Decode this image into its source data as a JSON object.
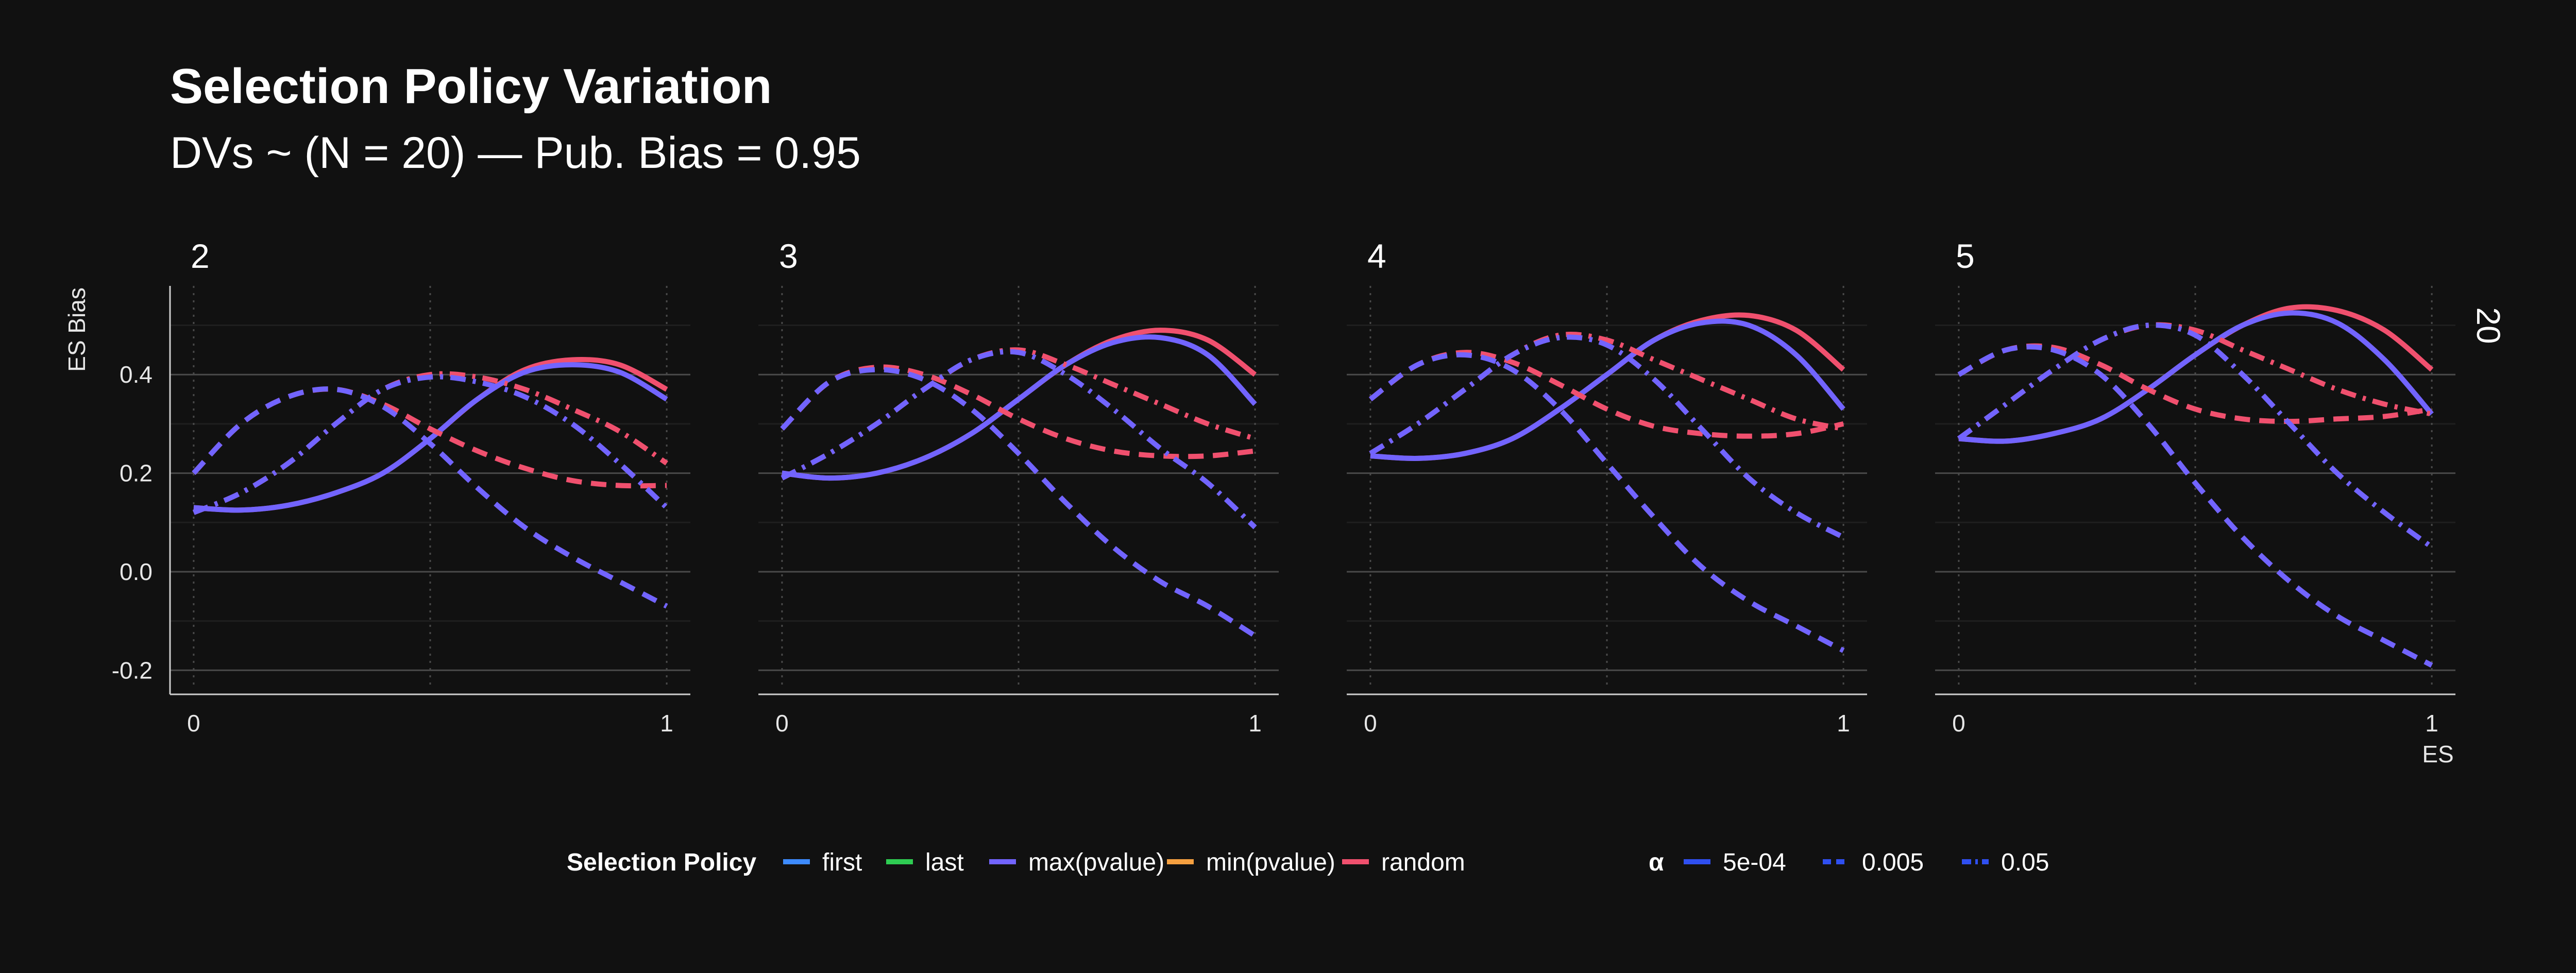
{
  "chart_data": {
    "type": "line",
    "title": "Selection Policy Variation",
    "subtitle": "DVs ~ (N = 20) — Pub. Bias = 0.95",
    "xlabel": "ES",
    "ylabel": "ES Bias",
    "facet_row_label": "20",
    "xlim": [
      -0.05,
      1.05
    ],
    "ylim": [
      -0.23,
      0.58
    ],
    "x_ticks": [
      0,
      1
    ],
    "x_tick_labels": [
      "0",
      "1"
    ],
    "y_ticks": [
      0.4,
      0.2,
      0.0,
      -0.2
    ],
    "y_tick_labels": [
      "0.4",
      "0.2",
      "0.0",
      "-0.2"
    ],
    "grid": true,
    "legend_placement": "bottom",
    "legends": {
      "color": {
        "title": "Selection Policy",
        "entries": [
          {
            "label": "first",
            "color": "#3d8bff"
          },
          {
            "label": "last",
            "color": "#2ecc52"
          },
          {
            "label": "max(pvalue)",
            "color": "#7264ff"
          },
          {
            "label": "min(pvalue)",
            "color": "#f5a040"
          },
          {
            "label": "random",
            "color": "#f0506e"
          }
        ]
      },
      "linetype": {
        "title": "α",
        "color": "#2f4ff0",
        "entries": [
          {
            "label": "5e-04",
            "dash": "solid"
          },
          {
            "label": "0.005",
            "dash": "dashed"
          },
          {
            "label": "0.05",
            "dash": "dashdot"
          }
        ]
      }
    },
    "x": [
      0,
      0.1,
      0.2,
      0.3,
      0.4,
      0.5,
      0.6,
      0.7,
      0.8,
      0.9,
      1.0
    ],
    "panels": [
      {
        "label": "2",
        "series": [
          {
            "policy": "random",
            "alpha": "5e-04",
            "color": "#f0506e",
            "values": [
              0.13,
              0.125,
              0.135,
              0.16,
              0.2,
              0.27,
              0.35,
              0.41,
              0.43,
              0.42,
              0.37
            ]
          },
          {
            "policy": "max(pvalue)",
            "alpha": "5e-04",
            "color": "#7264ff",
            "values": [
              0.13,
              0.125,
              0.135,
              0.16,
              0.2,
              0.27,
              0.35,
              0.405,
              0.42,
              0.405,
              0.35
            ]
          },
          {
            "policy": "random",
            "alpha": "0.005",
            "color": "#f0506e",
            "values": [
              0.2,
              0.3,
              0.355,
              0.37,
              0.34,
              0.29,
              0.245,
              0.21,
              0.185,
              0.175,
              0.175
            ]
          },
          {
            "policy": "max(pvalue)",
            "alpha": "0.005",
            "color": "#7264ff",
            "values": [
              0.2,
              0.3,
              0.355,
              0.37,
              0.335,
              0.26,
              0.17,
              0.09,
              0.03,
              -0.02,
              -0.07
            ]
          },
          {
            "policy": "random",
            "alpha": "0.05",
            "color": "#f0506e",
            "values": [
              0.12,
              0.16,
              0.22,
              0.3,
              0.37,
              0.4,
              0.395,
              0.37,
              0.33,
              0.285,
              0.22
            ]
          },
          {
            "policy": "max(pvalue)",
            "alpha": "0.05",
            "color": "#7264ff",
            "values": [
              0.12,
              0.16,
              0.22,
              0.3,
              0.37,
              0.395,
              0.385,
              0.355,
              0.3,
              0.22,
              0.13
            ]
          }
        ]
      },
      {
        "label": "3",
        "series": [
          {
            "policy": "random",
            "alpha": "5e-04",
            "color": "#f0506e",
            "values": [
              0.2,
              0.19,
              0.2,
              0.23,
              0.28,
              0.35,
              0.42,
              0.47,
              0.49,
              0.47,
              0.4
            ]
          },
          {
            "policy": "max(pvalue)",
            "alpha": "5e-04",
            "color": "#7264ff",
            "values": [
              0.2,
              0.19,
              0.2,
              0.23,
              0.28,
              0.35,
              0.42,
              0.465,
              0.475,
              0.44,
              0.34
            ]
          },
          {
            "policy": "random",
            "alpha": "0.005",
            "color": "#f0506e",
            "values": [
              0.29,
              0.385,
              0.415,
              0.4,
              0.36,
              0.31,
              0.27,
              0.245,
              0.235,
              0.235,
              0.245
            ]
          },
          {
            "policy": "max(pvalue)",
            "alpha": "0.005",
            "color": "#7264ff",
            "values": [
              0.29,
              0.385,
              0.41,
              0.39,
              0.33,
              0.24,
              0.14,
              0.05,
              -0.02,
              -0.07,
              -0.13
            ]
          },
          {
            "policy": "random",
            "alpha": "0.05",
            "color": "#f0506e",
            "values": [
              0.19,
              0.24,
              0.3,
              0.37,
              0.43,
              0.45,
              0.42,
              0.38,
              0.34,
              0.3,
              0.27
            ]
          },
          {
            "policy": "max(pvalue)",
            "alpha": "0.05",
            "color": "#7264ff",
            "values": [
              0.19,
              0.24,
              0.3,
              0.37,
              0.43,
              0.445,
              0.4,
              0.33,
              0.25,
              0.18,
              0.09
            ]
          }
        ]
      },
      {
        "label": "4",
        "series": [
          {
            "policy": "random",
            "alpha": "5e-04",
            "color": "#f0506e",
            "values": [
              0.235,
              0.23,
              0.24,
              0.27,
              0.33,
              0.4,
              0.47,
              0.51,
              0.52,
              0.49,
              0.41
            ]
          },
          {
            "policy": "max(pvalue)",
            "alpha": "5e-04",
            "color": "#7264ff",
            "values": [
              0.235,
              0.23,
              0.24,
              0.27,
              0.33,
              0.4,
              0.47,
              0.505,
              0.5,
              0.44,
              0.33
            ]
          },
          {
            "policy": "random",
            "alpha": "0.005",
            "color": "#f0506e",
            "values": [
              0.35,
              0.42,
              0.445,
              0.425,
              0.38,
              0.33,
              0.295,
              0.28,
              0.275,
              0.28,
              0.3
            ]
          },
          {
            "policy": "max(pvalue)",
            "alpha": "0.005",
            "color": "#7264ff",
            "values": [
              0.35,
              0.42,
              0.44,
              0.41,
              0.33,
              0.22,
              0.11,
              0.01,
              -0.06,
              -0.11,
              -0.16
            ]
          },
          {
            "policy": "random",
            "alpha": "0.05",
            "color": "#f0506e",
            "values": [
              0.24,
              0.3,
              0.37,
              0.44,
              0.48,
              0.47,
              0.43,
              0.39,
              0.35,
              0.31,
              0.29
            ]
          },
          {
            "policy": "max(pvalue)",
            "alpha": "0.05",
            "color": "#7264ff",
            "values": [
              0.24,
              0.3,
              0.37,
              0.44,
              0.475,
              0.46,
              0.39,
              0.29,
              0.19,
              0.12,
              0.07
            ]
          }
        ]
      },
      {
        "label": "5",
        "series": [
          {
            "policy": "random",
            "alpha": "5e-04",
            "color": "#f0506e",
            "values": [
              0.27,
              0.265,
              0.28,
              0.31,
              0.37,
              0.44,
              0.5,
              0.535,
              0.53,
              0.49,
              0.41
            ]
          },
          {
            "policy": "max(pvalue)",
            "alpha": "5e-04",
            "color": "#7264ff",
            "values": [
              0.27,
              0.265,
              0.28,
              0.31,
              0.37,
              0.44,
              0.5,
              0.525,
              0.505,
              0.43,
              0.32
            ]
          },
          {
            "policy": "random",
            "alpha": "0.005",
            "color": "#f0506e",
            "values": [
              0.4,
              0.45,
              0.455,
              0.42,
              0.37,
              0.33,
              0.31,
              0.305,
              0.31,
              0.315,
              0.33
            ]
          },
          {
            "policy": "max(pvalue)",
            "alpha": "0.005",
            "color": "#7264ff",
            "values": [
              0.4,
              0.45,
              0.45,
              0.4,
              0.3,
              0.18,
              0.07,
              -0.02,
              -0.09,
              -0.14,
              -0.19
            ]
          },
          {
            "policy": "random",
            "alpha": "0.05",
            "color": "#f0506e",
            "values": [
              0.27,
              0.34,
              0.41,
              0.47,
              0.5,
              0.49,
              0.45,
              0.41,
              0.37,
              0.34,
              0.32
            ]
          },
          {
            "policy": "max(pvalue)",
            "alpha": "0.05",
            "color": "#7264ff",
            "values": [
              0.27,
              0.34,
              0.41,
              0.47,
              0.5,
              0.48,
              0.4,
              0.3,
              0.2,
              0.12,
              0.05
            ]
          }
        ]
      }
    ]
  }
}
